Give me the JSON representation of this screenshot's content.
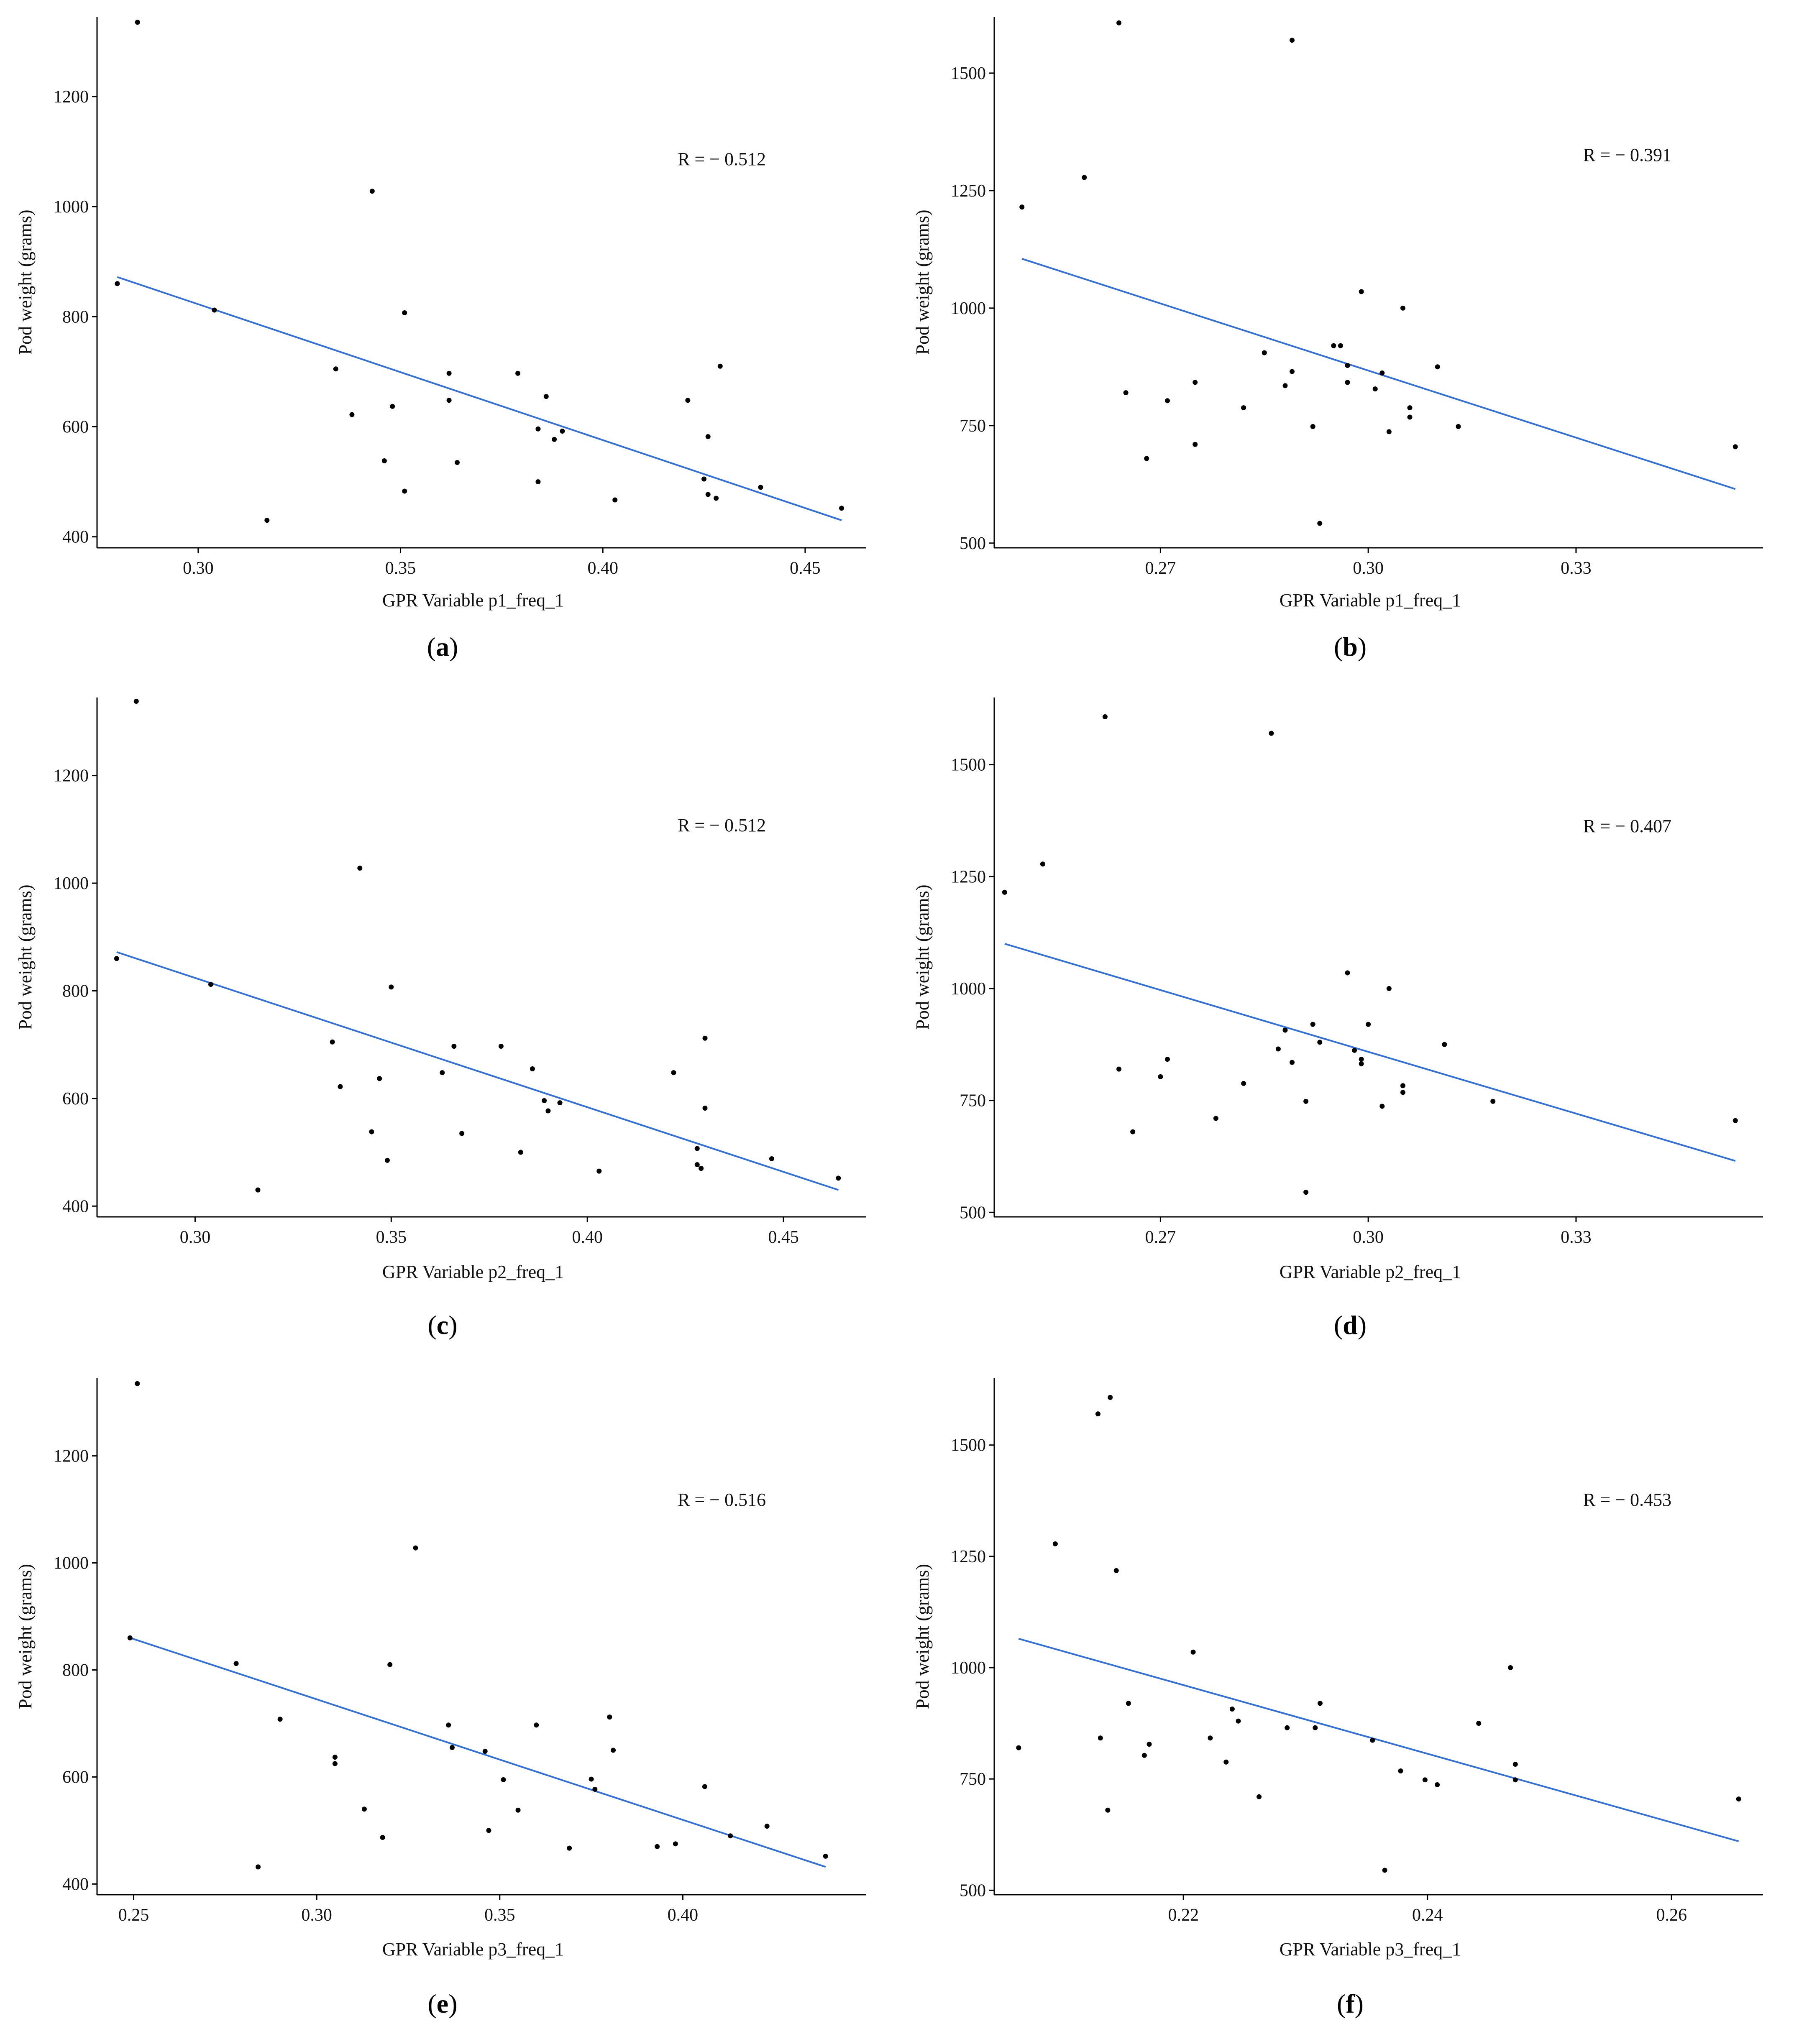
{
  "chart_data": [
    {
      "id": "a",
      "type": "scatter",
      "caption": "a",
      "xlabel": "GPR Variable p1_freq_1",
      "ylabel": "Pod weight (grams)",
      "annotation": "R = − 0.512",
      "xlim": [
        0.275,
        0.465
      ],
      "ylim": [
        380,
        1345
      ],
      "xticks": [
        0.3,
        0.35,
        0.4,
        0.45
      ],
      "xtick_labels": [
        "0.30",
        "0.35",
        "0.40",
        "0.45"
      ],
      "yticks": [
        400,
        600,
        800,
        1000,
        1200
      ],
      "ytick_labels": [
        "400",
        "600",
        "800",
        "1000",
        "1200"
      ],
      "fit_line": [
        [
          0.28,
          872
        ],
        [
          0.459,
          430
        ]
      ],
      "points": [
        [
          0.28,
          860
        ],
        [
          0.285,
          1335
        ],
        [
          0.304,
          812
        ],
        [
          0.317,
          430
        ],
        [
          0.334,
          705
        ],
        [
          0.338,
          622
        ],
        [
          0.343,
          1028
        ],
        [
          0.346,
          538
        ],
        [
          0.348,
          637
        ],
        [
          0.351,
          807
        ],
        [
          0.351,
          483
        ],
        [
          0.362,
          697
        ],
        [
          0.362,
          648
        ],
        [
          0.364,
          535
        ],
        [
          0.379,
          697
        ],
        [
          0.384,
          596
        ],
        [
          0.384,
          500
        ],
        [
          0.386,
          655
        ],
        [
          0.388,
          577
        ],
        [
          0.39,
          592
        ],
        [
          0.403,
          467
        ],
        [
          0.421,
          648
        ],
        [
          0.425,
          505
        ],
        [
          0.426,
          582
        ],
        [
          0.426,
          477
        ],
        [
          0.428,
          470
        ],
        [
          0.429,
          710
        ],
        [
          0.439,
          490
        ],
        [
          0.459,
          452
        ]
      ]
    },
    {
      "id": "b",
      "type": "scatter",
      "caption": "b",
      "xlabel": "GPR Variable p1_freq_1",
      "ylabel": "Pod weight (grams)",
      "annotation": "R = − 0.391",
      "xlim": [
        0.246,
        0.357
      ],
      "ylim": [
        490,
        1620
      ],
      "xticks": [
        0.27,
        0.3,
        0.33
      ],
      "xtick_labels": [
        "0.27",
        "0.30",
        "0.33"
      ],
      "yticks": [
        500,
        750,
        1000,
        1250,
        1500
      ],
      "ytick_labels": [
        "500",
        "750",
        "1000",
        "1250",
        "1500"
      ],
      "fit_line": [
        [
          0.25,
          1105
        ],
        [
          0.353,
          615
        ]
      ],
      "points": [
        [
          0.25,
          1215
        ],
        [
          0.259,
          1278
        ],
        [
          0.264,
          1607
        ],
        [
          0.265,
          820
        ],
        [
          0.268,
          680
        ],
        [
          0.271,
          803
        ],
        [
          0.275,
          842
        ],
        [
          0.275,
          710
        ],
        [
          0.282,
          788
        ],
        [
          0.285,
          905
        ],
        [
          0.288,
          835
        ],
        [
          0.289,
          865
        ],
        [
          0.289,
          1570
        ],
        [
          0.292,
          748
        ],
        [
          0.293,
          542
        ],
        [
          0.295,
          920
        ],
        [
          0.296,
          920
        ],
        [
          0.297,
          878
        ],
        [
          0.297,
          842
        ],
        [
          0.299,
          1035
        ],
        [
          0.301,
          828
        ],
        [
          0.302,
          862
        ],
        [
          0.303,
          737
        ],
        [
          0.305,
          1000
        ],
        [
          0.306,
          788
        ],
        [
          0.306,
          768
        ],
        [
          0.31,
          875
        ],
        [
          0.313,
          748
        ],
        [
          0.353,
          705
        ]
      ]
    },
    {
      "id": "c",
      "type": "scatter",
      "caption": "c",
      "xlabel": "GPR Variable p2_freq_1",
      "ylabel": "Pod weight (grams)",
      "annotation": "R = − 0.512",
      "xlim": [
        0.275,
        0.471
      ],
      "ylim": [
        380,
        1345
      ],
      "xticks": [
        0.3,
        0.35,
        0.4,
        0.45
      ],
      "xtick_labels": [
        "0.30",
        "0.35",
        "0.40",
        "0.45"
      ],
      "yticks": [
        400,
        600,
        800,
        1000,
        1200
      ],
      "ytick_labels": [
        "400",
        "600",
        "800",
        "1000",
        "1200"
      ],
      "fit_line": [
        [
          0.28,
          872
        ],
        [
          0.464,
          430
        ]
      ],
      "points": [
        [
          0.28,
          860
        ],
        [
          0.285,
          1338
        ],
        [
          0.304,
          812
        ],
        [
          0.316,
          430
        ],
        [
          0.335,
          705
        ],
        [
          0.337,
          622
        ],
        [
          0.342,
          1028
        ],
        [
          0.345,
          538
        ],
        [
          0.347,
          637
        ],
        [
          0.349,
          485
        ],
        [
          0.35,
          807
        ],
        [
          0.363,
          648
        ],
        [
          0.366,
          697
        ],
        [
          0.368,
          535
        ],
        [
          0.378,
          697
        ],
        [
          0.383,
          500
        ],
        [
          0.386,
          655
        ],
        [
          0.389,
          596
        ],
        [
          0.39,
          577
        ],
        [
          0.393,
          592
        ],
        [
          0.403,
          465
        ],
        [
          0.422,
          648
        ],
        [
          0.428,
          507
        ],
        [
          0.428,
          477
        ],
        [
          0.429,
          470
        ],
        [
          0.43,
          712
        ],
        [
          0.43,
          582
        ],
        [
          0.447,
          488
        ],
        [
          0.464,
          452
        ]
      ]
    },
    {
      "id": "d",
      "type": "scatter",
      "caption": "d",
      "xlabel": "GPR Variable p2_freq_1",
      "ylabel": "Pod weight (grams)",
      "annotation": "R = − 0.407",
      "xlim": [
        0.246,
        0.357
      ],
      "ylim": [
        490,
        1650
      ],
      "xticks": [
        0.27,
        0.3,
        0.33
      ],
      "xtick_labels": [
        "0.27",
        "0.30",
        "0.33"
      ],
      "yticks": [
        500,
        750,
        1000,
        1250,
        1500
      ],
      "ytick_labels": [
        "500",
        "750",
        "1000",
        "1250",
        "1500"
      ],
      "fit_line": [
        [
          0.2475,
          1100
        ],
        [
          0.353,
          615
        ]
      ],
      "points": [
        [
          0.2475,
          1215
        ],
        [
          0.253,
          1278
        ],
        [
          0.262,
          1607
        ],
        [
          0.264,
          820
        ],
        [
          0.266,
          680
        ],
        [
          0.27,
          803
        ],
        [
          0.271,
          842
        ],
        [
          0.278,
          710
        ],
        [
          0.282,
          788
        ],
        [
          0.286,
          1570
        ],
        [
          0.287,
          865
        ],
        [
          0.288,
          907
        ],
        [
          0.289,
          835
        ],
        [
          0.291,
          748
        ],
        [
          0.291,
          545
        ],
        [
          0.292,
          920
        ],
        [
          0.293,
          880
        ],
        [
          0.297,
          1035
        ],
        [
          0.298,
          862
        ],
        [
          0.299,
          842
        ],
        [
          0.299,
          832
        ],
        [
          0.3,
          920
        ],
        [
          0.302,
          737
        ],
        [
          0.303,
          1000
        ],
        [
          0.305,
          768
        ],
        [
          0.305,
          783
        ],
        [
          0.311,
          875
        ],
        [
          0.318,
          748
        ],
        [
          0.353,
          705
        ]
      ]
    },
    {
      "id": "e",
      "type": "scatter",
      "caption": "e",
      "xlabel": "GPR Variable p3_freq_1",
      "ylabel": "Pod weight (grams)",
      "annotation": "R = − 0.516",
      "xlim": [
        0.24,
        0.45
      ],
      "ylim": [
        380,
        1345
      ],
      "xticks": [
        0.25,
        0.3,
        0.35,
        0.4
      ],
      "xtick_labels": [
        "0.25",
        "0.30",
        "0.35",
        "0.40"
      ],
      "yticks": [
        400,
        600,
        800,
        1000,
        1200
      ],
      "ytick_labels": [
        "400",
        "600",
        "800",
        "1000",
        "1200"
      ],
      "fit_line": [
        [
          0.249,
          860
        ],
        [
          0.439,
          432
        ]
      ],
      "points": [
        [
          0.249,
          860
        ],
        [
          0.251,
          1335
        ],
        [
          0.278,
          812
        ],
        [
          0.284,
          432
        ],
        [
          0.29,
          708
        ],
        [
          0.305,
          637
        ],
        [
          0.305,
          625
        ],
        [
          0.313,
          540
        ],
        [
          0.318,
          487
        ],
        [
          0.32,
          810
        ],
        [
          0.327,
          1028
        ],
        [
          0.336,
          697
        ],
        [
          0.337,
          655
        ],
        [
          0.346,
          648
        ],
        [
          0.347,
          500
        ],
        [
          0.351,
          595
        ],
        [
          0.355,
          538
        ],
        [
          0.36,
          697
        ],
        [
          0.369,
          467
        ],
        [
          0.375,
          596
        ],
        [
          0.376,
          577
        ],
        [
          0.38,
          712
        ],
        [
          0.381,
          650
        ],
        [
          0.393,
          470
        ],
        [
          0.398,
          475
        ],
        [
          0.406,
          582
        ],
        [
          0.413,
          490
        ],
        [
          0.423,
          508
        ],
        [
          0.439,
          452
        ]
      ]
    },
    {
      "id": "f",
      "type": "scatter",
      "caption": "f",
      "xlabel": "GPR Variable p3_freq_1",
      "ylabel": "Pod weight (grams)",
      "annotation": "R = − 0.453",
      "xlim": [
        0.2045,
        0.2675
      ],
      "ylim": [
        490,
        1650
      ],
      "xticks": [
        0.22,
        0.24,
        0.26
      ],
      "xtick_labels": [
        "0.22",
        "0.24",
        "0.26"
      ],
      "yticks": [
        500,
        750,
        1000,
        1250,
        1500
      ],
      "ytick_labels": [
        "500",
        "750",
        "1000",
        "1250",
        "1500"
      ],
      "fit_line": [
        [
          0.2065,
          1065
        ],
        [
          0.2655,
          610
        ]
      ],
      "points": [
        [
          0.2065,
          820
        ],
        [
          0.2095,
          1278
        ],
        [
          0.213,
          1570
        ],
        [
          0.2132,
          842
        ],
        [
          0.2138,
          680
        ],
        [
          0.214,
          1607
        ],
        [
          0.2145,
          1218
        ],
        [
          0.2155,
          920
        ],
        [
          0.2168,
          803
        ],
        [
          0.2172,
          828
        ],
        [
          0.2208,
          1035
        ],
        [
          0.2222,
          842
        ],
        [
          0.2235,
          788
        ],
        [
          0.224,
          907
        ],
        [
          0.2245,
          880
        ],
        [
          0.2262,
          710
        ],
        [
          0.2285,
          865
        ],
        [
          0.2308,
          865
        ],
        [
          0.2312,
          920
        ],
        [
          0.2355,
          837
        ],
        [
          0.2365,
          545
        ],
        [
          0.2378,
          768
        ],
        [
          0.2398,
          748
        ],
        [
          0.2408,
          737
        ],
        [
          0.2442,
          875
        ],
        [
          0.2468,
          1000
        ],
        [
          0.2472,
          783
        ],
        [
          0.2472,
          748
        ],
        [
          0.2655,
          705
        ]
      ]
    }
  ]
}
